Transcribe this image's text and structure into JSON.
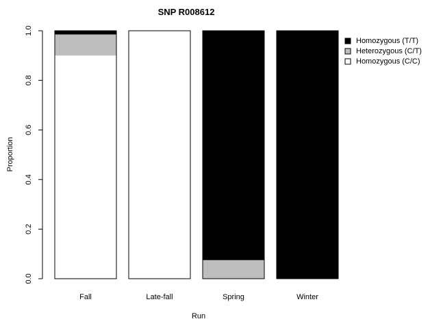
{
  "chart_data": {
    "type": "bar",
    "stacked": true,
    "title": "SNP R008612",
    "xlabel": "Run",
    "ylabel": "Proportion",
    "ylim": [
      0,
      1
    ],
    "yticks": [
      "0.0",
      "0.2",
      "0.4",
      "0.6",
      "0.8",
      "1.0"
    ],
    "categories": [
      "Fall",
      "Late-fall",
      "Spring",
      "Winter"
    ],
    "series": [
      {
        "name": "Homozygous (C/C)",
        "color": "#ffffff",
        "values": [
          0.9,
          1.0,
          0.0,
          0.0
        ]
      },
      {
        "name": "Heterozygous (C/T)",
        "color": "#bebebe",
        "values": [
          0.085,
          0.0,
          0.075,
          0.0
        ]
      },
      {
        "name": "Homozygous (T/T)",
        "color": "#000000",
        "values": [
          0.015,
          0.0,
          0.925,
          1.0
        ]
      }
    ],
    "legend": {
      "position": "top-right",
      "order": [
        "Homozygous (T/T)",
        "Heterozygous (C/T)",
        "Homozygous (C/C)"
      ]
    }
  }
}
